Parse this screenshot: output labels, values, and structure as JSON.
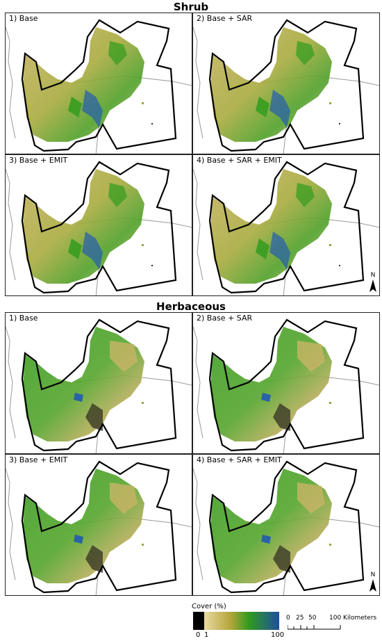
{
  "sections": [
    {
      "title": "Shrub",
      "panels": [
        "1) Base",
        "2) Base + SAR",
        "3) Base + EMIT",
        "4) Base + SAR + EMIT"
      ]
    },
    {
      "title": "Herbaceous",
      "panels": [
        "1) Base",
        "2) Base + SAR",
        "3) Base + EMIT",
        "4) Base + SAR + EMIT"
      ]
    }
  ],
  "north_arrow": "N",
  "legend": {
    "title": "Cover (%)",
    "ticks": [
      "0",
      "1",
      "100"
    ],
    "colors": [
      "#000000",
      "#e8d9a0",
      "#b5a63a",
      "#2f9a1f",
      "#1e4fa0"
    ]
  },
  "scale_bar": {
    "labels": [
      "0",
      "25",
      "50",
      "100 Kilometers"
    ]
  },
  "colors": {
    "shrub_tan": "#c9b466",
    "olive": "#9aa63a",
    "green": "#3f9f24",
    "blue": "#2a62a8",
    "dark": "#2b2b1e"
  }
}
